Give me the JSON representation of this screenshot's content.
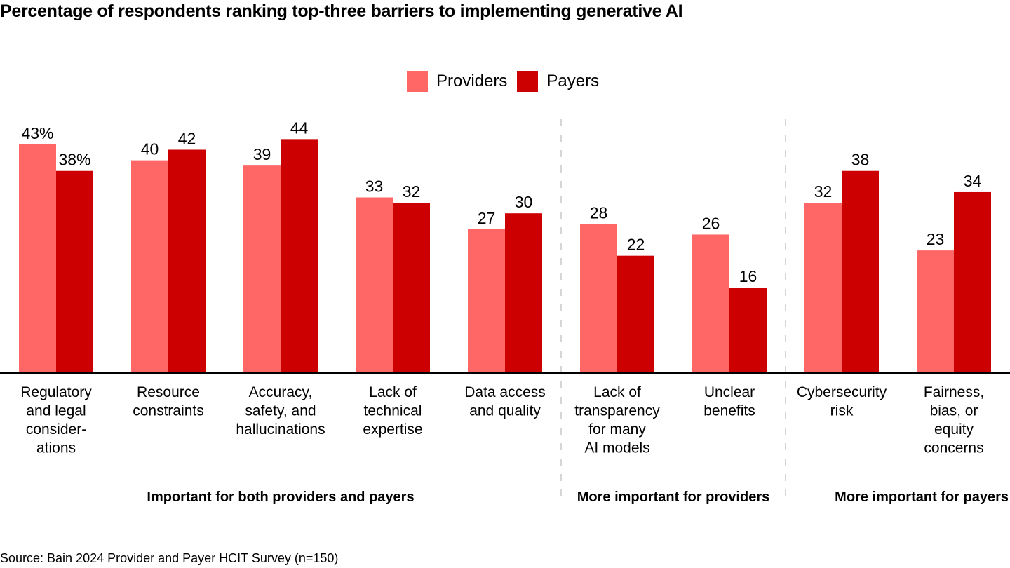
{
  "chart_data": {
    "type": "bar",
    "title": "Percentage of respondents ranking top-three barriers to implementing generative AI",
    "xlabel": "",
    "ylabel": "",
    "ylim": [
      0,
      44
    ],
    "grid": false,
    "legend_position": "top-center",
    "value_suffix_first_category": "%",
    "categories": [
      "Regulatory and legal consider- ations",
      "Resource constraints",
      "Accuracy, safety, and hallucinations",
      "Lack of technical expertise",
      "Data access and quality",
      "Lack of transparency for many AI models",
      "Unclear benefits",
      "Cybersecurity risk",
      "Fairness, bias, or equity concerns"
    ],
    "category_lines": [
      [
        "Regulatory",
        "and legal",
        "consider-",
        "ations"
      ],
      [
        "Resource",
        "constraints"
      ],
      [
        "Accuracy,",
        "safety, and",
        "hallucinations"
      ],
      [
        "Lack of",
        "technical",
        "expertise"
      ],
      [
        "Data access",
        "and quality"
      ],
      [
        "Lack of",
        "transparency",
        "for many",
        "AI models"
      ],
      [
        "Unclear",
        "benefits"
      ],
      [
        "Cybersecurity",
        "risk"
      ],
      [
        "Fairness,",
        "bias, or",
        "equity",
        "concerns"
      ]
    ],
    "series": [
      {
        "name": "Providers",
        "color": "#FF6666",
        "values": [
          43,
          40,
          39,
          33,
          27,
          28,
          26,
          32,
          23
        ]
      },
      {
        "name": "Payers",
        "color": "#CC0000",
        "values": [
          38,
          42,
          44,
          32,
          30,
          22,
          16,
          38,
          34
        ]
      }
    ],
    "groups": [
      {
        "label": "Important for both providers and payers",
        "categories": [
          0,
          1,
          2,
          3,
          4
        ]
      },
      {
        "label": "More important for providers",
        "categories": [
          5,
          6
        ]
      },
      {
        "label": "More important for payers",
        "categories": [
          7,
          8
        ]
      }
    ],
    "source": "Source: Bain 2024 Provider and Payer HCIT Survey (n=150)"
  }
}
